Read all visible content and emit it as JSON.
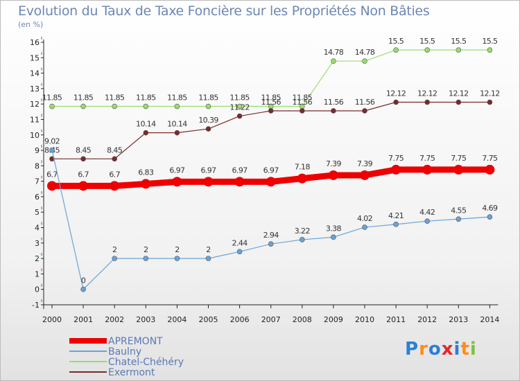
{
  "chart_data": {
    "type": "line",
    "title": "Evolution du Taux de Taxe Foncière sur les Propriétés Non Bâties",
    "ylabel": "(en %)",
    "xlabel": "",
    "categories": [
      "2000",
      "2001",
      "2002",
      "2003",
      "2004",
      "2005",
      "2006",
      "2007",
      "2008",
      "2009",
      "2010",
      "2011",
      "2012",
      "2013",
      "2014"
    ],
    "ylim": [
      -1,
      16
    ],
    "yticks": [
      -1,
      0,
      1,
      2,
      3,
      4,
      5,
      6,
      7,
      8,
      9,
      10,
      11,
      12,
      13,
      14,
      15,
      16
    ],
    "grid": false,
    "legend_position": "bottom-left",
    "series": [
      {
        "name": "APREMONT",
        "color": "#ee0000",
        "values": [
          6.7,
          6.7,
          6.7,
          6.83,
          6.97,
          6.97,
          6.97,
          6.97,
          7.18,
          7.39,
          7.39,
          7.75,
          7.75,
          7.75,
          7.75
        ],
        "labels": [
          "6.7",
          "6.7",
          "6.7",
          "6.83",
          "6.97",
          "6.97",
          "6.97",
          "6.97",
          "7.18",
          "7.39",
          "7.39",
          "7.75",
          "7.75",
          "7.75",
          "7.75"
        ]
      },
      {
        "name": "Baulny",
        "color": "#6aa2d6",
        "values": [
          9.02,
          0,
          2,
          2,
          2,
          2,
          2.44,
          2.94,
          3.22,
          3.38,
          4.02,
          4.21,
          4.42,
          4.55,
          4.69
        ],
        "labels": [
          "9.02",
          "0",
          "2",
          "2",
          "2",
          "2",
          "2.44",
          "2.94",
          "3.22",
          "3.38",
          "4.02",
          "4.21",
          "4.42",
          "4.55",
          "4.69"
        ]
      },
      {
        "name": "Chatel-Chéhéry",
        "color": "#96de6c",
        "values": [
          11.85,
          11.85,
          11.85,
          11.85,
          11.85,
          11.85,
          11.85,
          11.85,
          11.85,
          14.78,
          14.78,
          15.5,
          15.5,
          15.5,
          15.5
        ],
        "labels": [
          "11.85",
          "11.85",
          "11.85",
          "11.85",
          "11.85",
          "11.85",
          "11.85",
          "11.85",
          "11.85",
          "14.78",
          "14.78",
          "15.5",
          "15.5",
          "15.5",
          "15.5"
        ]
      },
      {
        "name": "Exermont",
        "color": "#7a2a2a",
        "values": [
          8.45,
          8.45,
          8.45,
          10.14,
          10.14,
          10.39,
          11.22,
          11.56,
          11.56,
          11.56,
          11.56,
          12.12,
          12.12,
          12.12,
          12.12
        ],
        "labels": [
          "8.45",
          "8.45",
          "8.45",
          "10.14",
          "10.14",
          "10.39",
          "11.22",
          "11.56",
          "11.56",
          "11.56",
          "11.56",
          "12.12",
          "12.12",
          "12.12",
          "12.12"
        ]
      }
    ]
  },
  "brand": {
    "letters": [
      "P",
      "r",
      "o",
      "x",
      "i",
      "t",
      "i"
    ],
    "colors": [
      "#2b7fd6",
      "#ff8c1a",
      "#2b7fd6",
      "#e8262b",
      "#2b7fd6",
      "#ff8c1a",
      "#7cc242"
    ]
  }
}
